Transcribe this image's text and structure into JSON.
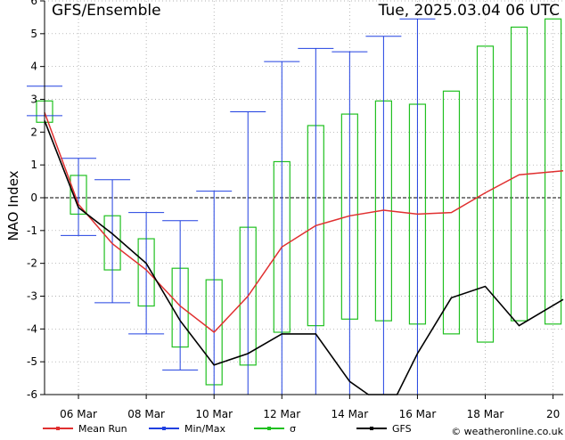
{
  "chart_data": {
    "type": "line",
    "title": "GFS/Ensemble",
    "timestamp": "Tue, 2025.03.04   06 UTC",
    "ylabel": "NAO Index",
    "xlabel": "",
    "ylim": [
      -6,
      6
    ],
    "xlim": [
      5.0,
      20.3
    ],
    "y_ticks": [
      -6,
      -5,
      -4,
      -3,
      -2,
      -1,
      0,
      1,
      2,
      3,
      4,
      5,
      6
    ],
    "x_ticks": [
      {
        "day": 6,
        "label": "06 Mar"
      },
      {
        "day": 8,
        "label": "08 Mar"
      },
      {
        "day": 10,
        "label": "10 Mar"
      },
      {
        "day": 12,
        "label": "12 Mar"
      },
      {
        "day": 14,
        "label": "14 Mar"
      },
      {
        "day": 16,
        "label": "16 Mar"
      },
      {
        "day": 18,
        "label": "18 Mar"
      },
      {
        "day": 20,
        "label": "20"
      }
    ],
    "grid": true,
    "zero_line": true,
    "credit": "© weatheronline.co.uk",
    "series": [
      {
        "name": "Mean Run",
        "color": "#e03030",
        "kind": "line",
        "points": [
          [
            5.0,
            2.6
          ],
          [
            6.0,
            -0.2
          ],
          [
            7.0,
            -1.4
          ],
          [
            8.0,
            -2.2
          ],
          [
            9.0,
            -3.3
          ],
          [
            10.0,
            -4.1
          ],
          [
            11.0,
            -3.0
          ],
          [
            12.0,
            -1.5
          ],
          [
            13.0,
            -0.85
          ],
          [
            14.0,
            -0.55
          ],
          [
            15.0,
            -0.38
          ],
          [
            16.0,
            -0.5
          ],
          [
            17.0,
            -0.45
          ],
          [
            18.0,
            0.15
          ],
          [
            19.0,
            0.7
          ],
          [
            20.3,
            0.82
          ]
        ]
      },
      {
        "name": "Min/Max",
        "color": "#2040e0",
        "kind": "whisker",
        "points": [
          {
            "x": 5.0,
            "min": 2.5,
            "max": 3.4
          },
          {
            "x": 6.0,
            "min": -1.15,
            "max": 1.2
          },
          {
            "x": 7.0,
            "min": -3.2,
            "max": 0.55
          },
          {
            "x": 8.0,
            "min": -4.15,
            "max": -0.45
          },
          {
            "x": 9.0,
            "min": -5.25,
            "max": -0.7
          },
          {
            "x": 10.0,
            "min": -6.0,
            "max": 0.2
          },
          {
            "x": 11.0,
            "min": -6.0,
            "max": 2.62
          },
          {
            "x": 12.0,
            "min": -6.0,
            "max": 4.15
          },
          {
            "x": 13.0,
            "min": -6.0,
            "max": 4.55
          },
          {
            "x": 14.0,
            "min": -6.0,
            "max": 4.45
          },
          {
            "x": 15.0,
            "min": -6.0,
            "max": 4.92
          },
          {
            "x": 16.0,
            "min": -6.0,
            "max": 5.45
          }
        ]
      },
      {
        "name": "σ",
        "color": "#20c020",
        "kind": "box",
        "points": [
          {
            "x": 5.0,
            "low": 2.3,
            "high": 2.95
          },
          {
            "x": 6.0,
            "low": -0.5,
            "high": 0.68
          },
          {
            "x": 7.0,
            "low": -2.2,
            "high": -0.55
          },
          {
            "x": 8.0,
            "low": -3.3,
            "high": -1.25
          },
          {
            "x": 9.0,
            "low": -4.55,
            "high": -2.15
          },
          {
            "x": 10.0,
            "low": -5.7,
            "high": -2.5
          },
          {
            "x": 11.0,
            "low": -5.1,
            "high": -0.9
          },
          {
            "x": 12.0,
            "low": -4.1,
            "high": 1.1
          },
          {
            "x": 13.0,
            "low": -3.9,
            "high": 2.2
          },
          {
            "x": 14.0,
            "low": -3.7,
            "high": 2.55
          },
          {
            "x": 15.0,
            "low": -3.75,
            "high": 2.95
          },
          {
            "x": 16.0,
            "low": -3.85,
            "high": 2.85
          },
          {
            "x": 17.0,
            "low": -4.15,
            "high": 3.25
          },
          {
            "x": 18.0,
            "low": -4.4,
            "high": 4.62
          },
          {
            "x": 19.0,
            "low": -3.75,
            "high": 5.2
          },
          {
            "x": 20.0,
            "low": -3.85,
            "high": 5.45
          }
        ]
      },
      {
        "name": "GFS",
        "color": "#000000",
        "kind": "line",
        "points": [
          [
            5.0,
            2.35
          ],
          [
            6.0,
            -0.3
          ],
          [
            7.0,
            -1.1
          ],
          [
            8.0,
            -2.0
          ],
          [
            9.0,
            -3.75
          ],
          [
            10.0,
            -5.1
          ],
          [
            11.0,
            -4.75
          ],
          [
            12.0,
            -4.15
          ],
          [
            13.0,
            -4.15
          ],
          [
            14.0,
            -5.6
          ],
          [
            14.55,
            -6.0
          ],
          [
            15.4,
            -6.0
          ],
          [
            16.0,
            -4.75
          ],
          [
            17.0,
            -3.05
          ],
          [
            18.0,
            -2.7
          ],
          [
            19.0,
            -3.9
          ],
          [
            20.3,
            -3.1
          ]
        ]
      }
    ]
  }
}
